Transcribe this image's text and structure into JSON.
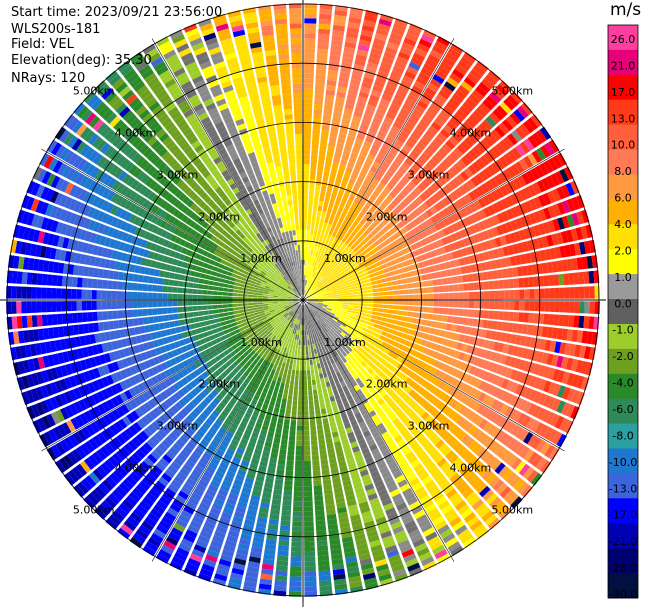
{
  "header": {
    "start_time": "Start time: 2023/09/21 23:56:00",
    "instrument": "WLS200s-181",
    "field": "Field: VEL",
    "elevation": "Elevation(deg): 35.30",
    "nrays": "NRays: 120"
  },
  "colorbar": {
    "unit": "m/s",
    "ticks": [
      "26.0",
      "21.0",
      "17.0",
      "13.0",
      "10.0",
      "8.0",
      "6.0",
      "4.0",
      "2.0",
      "1.0",
      "0.0",
      "-1.0",
      "-2.0",
      "-4.0",
      "-6.0",
      "-8.0",
      "-10.0",
      "-13.0",
      "-17.0",
      "-21.0",
      "-26.0",
      "-30.0"
    ],
    "colors": [
      "#ff3fa0",
      "#e8007a",
      "#ff0000",
      "#ff3a1a",
      "#ff5f3a",
      "#ff7a55",
      "#ff9a40",
      "#ffb000",
      "#ffe000",
      "#ffff00",
      "#9a9a9a",
      "#606060",
      "#9ccd2a",
      "#6ea020",
      "#2a8a2a",
      "#2e8b57",
      "#2aa0a0",
      "#1e78d2",
      "#3c64dc",
      "#0000ff",
      "#0000b4",
      "#000070",
      "#001040"
    ]
  },
  "chart_data": {
    "type": "ppi",
    "field": "VEL",
    "units": "m/s",
    "nrays": 120,
    "elevation_deg": 35.3,
    "vmin": -30,
    "vmax": 30,
    "range_rings_km": [
      1.0,
      2.0,
      3.0,
      4.0,
      5.0
    ],
    "range_ring_labels": [
      "1.00km",
      "2.00km",
      "3.00km",
      "4.00km",
      "5.00km"
    ],
    "radial_lines_deg": [
      0,
      30,
      60,
      90,
      120,
      150,
      180,
      210,
      240,
      270,
      300,
      330
    ],
    "approx_pattern": "dipole: positive (red/orange) toward east-northeast, negative (green/blue) toward west-southwest; yellow near zero ring; grey zero isodop"
  }
}
